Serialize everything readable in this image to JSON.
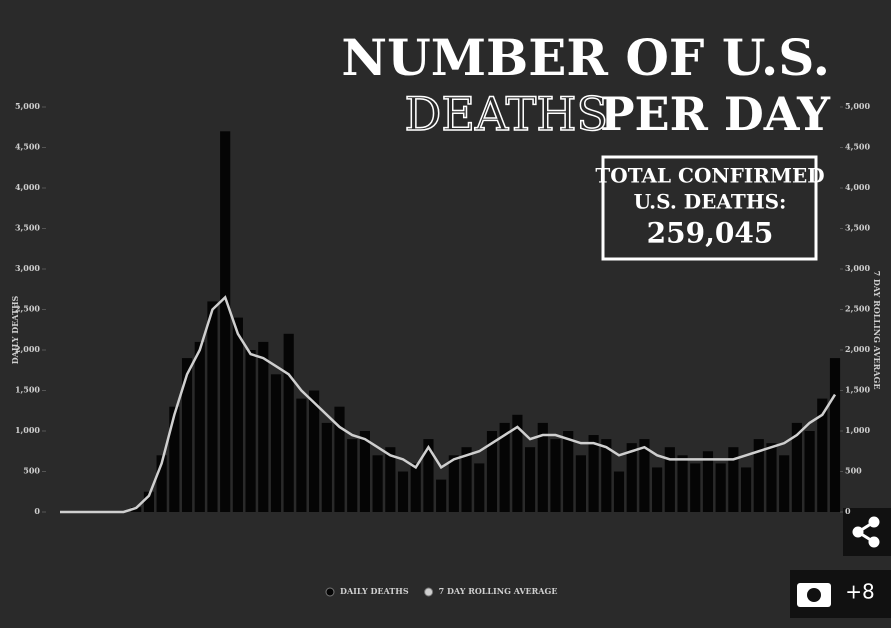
{
  "chart_data": {
    "type": "bar_line",
    "title": {
      "first": "NUMBER OF U.S.",
      "outlined": "DEATHS",
      "rest": "PER DAY"
    },
    "annotation": {
      "lines": [
        "TOTAL CONFIRMED",
        "U.S. DEATHS:"
      ],
      "total": "259,045"
    },
    "ylabel": "DAILY DEATHS",
    "y2label": "7 DAY ROLLING AVERAGE",
    "categories": [
      null,
      null,
      null,
      null,
      null,
      null,
      null,
      null,
      null,
      null,
      null,
      null,
      null,
      null,
      null,
      null,
      null,
      null,
      null,
      null,
      null,
      null,
      null,
      null,
      null,
      null,
      null,
      null,
      null,
      null,
      null,
      null,
      null,
      null,
      null,
      null,
      null,
      null,
      null,
      null,
      null,
      null,
      null,
      null,
      null,
      null,
      null,
      null,
      null,
      null,
      null,
      null,
      null,
      null,
      null,
      null,
      null,
      null,
      null,
      null,
      null,
      null
    ],
    "series": [
      {
        "name": "DAILY DEATHS",
        "color": "#050505",
        "kind": "bar",
        "axis": "y",
        "values": [
          0,
          0,
          0,
          0,
          0,
          5,
          60,
          250,
          700,
          1300,
          1900,
          2100,
          2600,
          4700,
          2400,
          2000,
          2100,
          1700,
          2200,
          1400,
          1500,
          1100,
          1300,
          900,
          1000,
          700,
          800,
          500,
          600,
          900,
          400,
          700,
          800,
          600,
          1000,
          1100,
          1200,
          800,
          1100,
          900,
          1000,
          700,
          950,
          900,
          500,
          850,
          900,
          550,
          800,
          700,
          600,
          750,
          600,
          800,
          550,
          900,
          850,
          700,
          1100,
          1000,
          1400,
          1900
        ]
      },
      {
        "name": "7 DAY ROLLING AVERAGE",
        "color": "#cfcfcf",
        "kind": "line",
        "axis": "y2",
        "values": [
          0,
          0,
          0,
          0,
          0,
          0,
          50,
          200,
          600,
          1200,
          1700,
          2000,
          2500,
          2650,
          2200,
          1950,
          1900,
          1800,
          1700,
          1500,
          1350,
          1200,
          1050,
          950,
          900,
          800,
          700,
          650,
          550,
          800,
          550,
          650,
          700,
          750,
          850,
          950,
          1050,
          900,
          950,
          950,
          900,
          850,
          850,
          800,
          700,
          750,
          800,
          700,
          650,
          650,
          650,
          650,
          650,
          650,
          700,
          750,
          800,
          850,
          950,
          1100,
          1200,
          1450
        ]
      }
    ],
    "ylim": [
      0,
      5000
    ],
    "y2lim": [
      0,
      5000
    ],
    "yticks": [
      0,
      500,
      {
        "value": 1000,
        "label": "1,000"
      },
      {
        "value": 1500,
        "label": "1,500"
      },
      {
        "value": 2000,
        "label": "2,000"
      },
      {
        "value": 2500,
        "label": "2,500"
      },
      {
        "value": 3000,
        "label": "3,000"
      },
      {
        "value": 3500,
        "label": "3,500"
      },
      {
        "value": 4000,
        "label": "4,000"
      },
      {
        "value": 4500,
        "label": "4,500"
      },
      {
        "value": 5000,
        "label": "5,000"
      }
    ],
    "y2ticks": [
      0,
      500,
      {
        "value": 1000,
        "label": "1,000"
      },
      {
        "value": 1500,
        "label": "1,500"
      },
      {
        "value": 2000,
        "label": "2,000"
      },
      {
        "value": 2500,
        "label": "2,500"
      },
      {
        "value": 3000,
        "label": "3,000"
      },
      {
        "value": 3500,
        "label": "3,500"
      },
      {
        "value": 4000,
        "label": "4,000"
      },
      {
        "value": 4500,
        "label": "4,500"
      },
      {
        "value": 5000,
        "label": "5,000"
      }
    ],
    "grid": false
  },
  "ui": {
    "photo_count": "+8"
  }
}
